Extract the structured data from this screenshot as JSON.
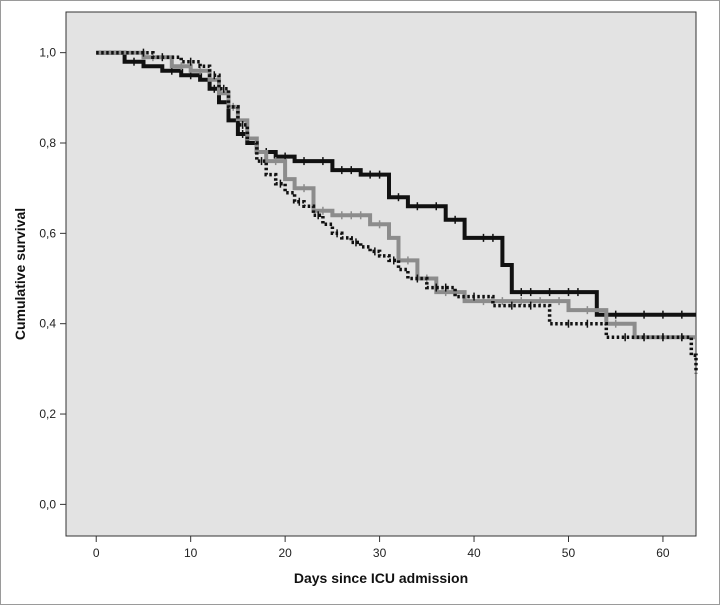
{
  "chart_data": {
    "type": "line",
    "subtype": "kaplan-meier step",
    "title": "",
    "xlabel": "Days since ICU admission",
    "ylabel": "Cumulative survival",
    "xlim": [
      -3.2,
      63.5
    ],
    "ylim": [
      -0.07,
      1.09
    ],
    "x_ticks": [
      0,
      10,
      20,
      30,
      40,
      50,
      60
    ],
    "y_ticks": [
      0.0,
      0.2,
      0.4,
      0.6,
      0.8,
      1.0
    ],
    "x_tick_labels": [
      "0",
      "10",
      "20",
      "30",
      "40",
      "50",
      "60"
    ],
    "y_tick_labels": [
      "0,0",
      "0,2",
      "0,4",
      "0,6",
      "0,8",
      "1,0"
    ],
    "grid": false,
    "legend": "none",
    "background": "#e3e3e3",
    "series": [
      {
        "style": "solid",
        "color": "#111111",
        "x": [
          0,
          3,
          5,
          7,
          9,
          11,
          12,
          13,
          14,
          15,
          16,
          17,
          19,
          21,
          25,
          28,
          31,
          33,
          37,
          39,
          43,
          44,
          53,
          63.5
        ],
        "y": [
          1.0,
          0.98,
          0.97,
          0.96,
          0.95,
          0.94,
          0.92,
          0.89,
          0.85,
          0.82,
          0.8,
          0.78,
          0.77,
          0.76,
          0.74,
          0.73,
          0.68,
          0.66,
          0.63,
          0.59,
          0.53,
          0.47,
          0.42,
          0.42
        ],
        "censored_x": [
          4,
          8,
          10,
          12.5,
          15.5,
          18,
          20,
          22,
          24,
          26,
          27,
          29,
          30,
          32,
          34,
          36,
          38,
          41,
          42,
          45,
          46,
          48,
          50,
          51,
          55,
          58,
          60,
          62
        ]
      },
      {
        "style": "solid",
        "color": "#8c8c8c",
        "x": [
          0,
          5,
          8,
          10,
          12,
          13,
          14,
          15,
          16,
          17,
          18,
          20,
          21,
          23,
          25,
          29,
          31,
          32,
          34,
          36,
          39,
          50,
          54,
          57,
          63.5
        ],
        "y": [
          1.0,
          0.99,
          0.97,
          0.96,
          0.94,
          0.91,
          0.88,
          0.85,
          0.81,
          0.78,
          0.76,
          0.72,
          0.7,
          0.65,
          0.64,
          0.62,
          0.59,
          0.54,
          0.5,
          0.47,
          0.45,
          0.43,
          0.4,
          0.37,
          0.37
        ],
        "censored_x": [
          6,
          9,
          11,
          14.5,
          19,
          22,
          24,
          26,
          27,
          28,
          30,
          33,
          35,
          37,
          41,
          43,
          45,
          47,
          49,
          52,
          55,
          58,
          60,
          62
        ]
      },
      {
        "style": "dotted",
        "color": "#111111",
        "x": [
          0,
          6,
          9,
          11,
          12,
          13,
          14,
          15,
          16,
          17,
          18,
          19,
          20,
          21,
          22,
          23,
          24,
          25,
          26,
          27,
          28,
          29,
          30,
          31,
          32,
          33,
          35,
          38,
          42,
          48,
          54,
          63,
          63.5
        ],
        "y": [
          1.0,
          0.99,
          0.98,
          0.97,
          0.95,
          0.92,
          0.88,
          0.84,
          0.8,
          0.76,
          0.73,
          0.71,
          0.69,
          0.67,
          0.66,
          0.64,
          0.62,
          0.6,
          0.59,
          0.58,
          0.57,
          0.56,
          0.55,
          0.54,
          0.52,
          0.5,
          0.48,
          0.46,
          0.44,
          0.4,
          0.37,
          0.33,
          0.29
        ],
        "censored_x": [
          5,
          7,
          10,
          12.5,
          13.5,
          15.5,
          17.5,
          19.5,
          21.5,
          23.5,
          25.5,
          27.5,
          29.5,
          31.5,
          34,
          36,
          37,
          40,
          44,
          46,
          50,
          52,
          56,
          58,
          60,
          62
        ]
      }
    ]
  }
}
